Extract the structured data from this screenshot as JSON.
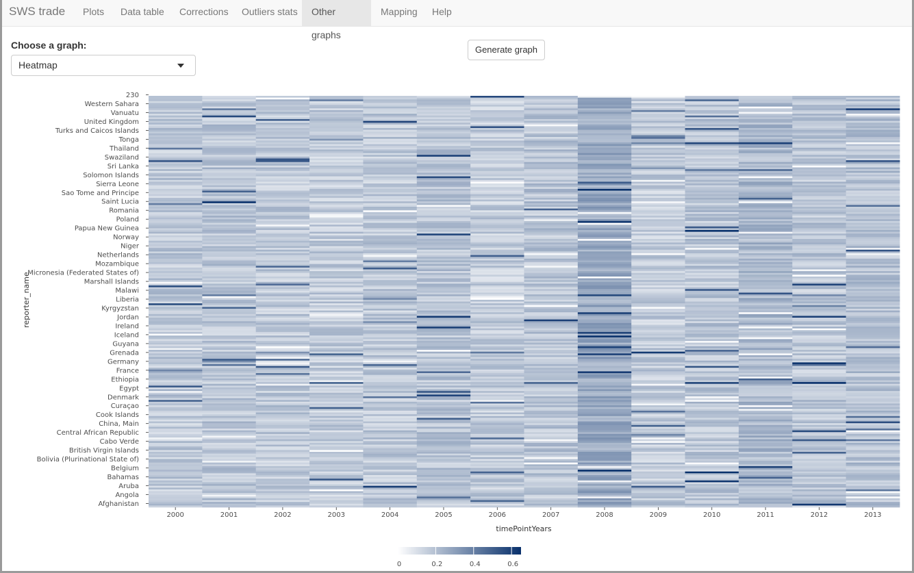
{
  "app": {
    "brand": "SWS trade",
    "tabs": [
      {
        "label": "Plots",
        "active": false
      },
      {
        "label": "Data table",
        "active": false
      },
      {
        "label": "Corrections",
        "active": false
      },
      {
        "label": "Outliers stats",
        "active": false
      },
      {
        "label": "Other graphs",
        "active": true
      },
      {
        "label": "Mapping",
        "active": false
      },
      {
        "label": "Help",
        "active": false
      }
    ]
  },
  "controls": {
    "choose_label": "Choose a graph:",
    "graph_select_value": "Heatmap",
    "generate_button": "Generate graph"
  },
  "chart_data": {
    "type": "heatmap",
    "xlabel": "timePointYears",
    "ylabel": "reporter_name",
    "x": [
      "2000",
      "2001",
      "2002",
      "2003",
      "2004",
      "2005",
      "2006",
      "2007",
      "2008",
      "2009",
      "2010",
      "2011",
      "2012",
      "2013"
    ],
    "y_tick_labels": [
      "230",
      "Western Sahara",
      "Vanuatu",
      "United Kingdom",
      "Turks and Caicos Islands",
      "Tonga",
      "Thailand",
      "Swaziland",
      "Sri Lanka",
      "Solomon Islands",
      "Sierra Leone",
      "Sao Tome and Principe",
      "Saint Lucia",
      "Romania",
      "Poland",
      "Papua New Guinea",
      "Norway",
      "Niger",
      "Netherlands",
      "Mozambique",
      "Micronesia (Federated States of)",
      "Marshall Islands",
      "Malawi",
      "Liberia",
      "Kyrgyzstan",
      "Jordan",
      "Ireland",
      "Iceland",
      "Guyana",
      "Grenada",
      "Germany",
      "France",
      "Ethiopia",
      "Egypt",
      "Denmark",
      "Curaçao",
      "Cook Islands",
      "China, Main",
      "Central African Republic",
      "Cabo Verde",
      "British Virgin Islands",
      "Bolivia (Plurinational State of)",
      "Belgium",
      "Bahamas",
      "Aruba",
      "Angola",
      "Afghanistan"
    ],
    "n_rows": 230,
    "color_scale": {
      "low": "#ffffff",
      "high": "#08306b",
      "min": 0,
      "max": 0.65
    },
    "column_mean_intensity": [
      0.17,
      0.18,
      0.17,
      0.16,
      0.17,
      0.18,
      0.16,
      0.18,
      0.27,
      0.16,
      0.18,
      0.22,
      0.18,
      0.19
    ],
    "legend": {
      "ticks": [
        "0",
        "0.2",
        "0.4",
        "0.6"
      ],
      "tick_values": [
        0,
        0.2,
        0.4,
        0.6
      ]
    }
  }
}
